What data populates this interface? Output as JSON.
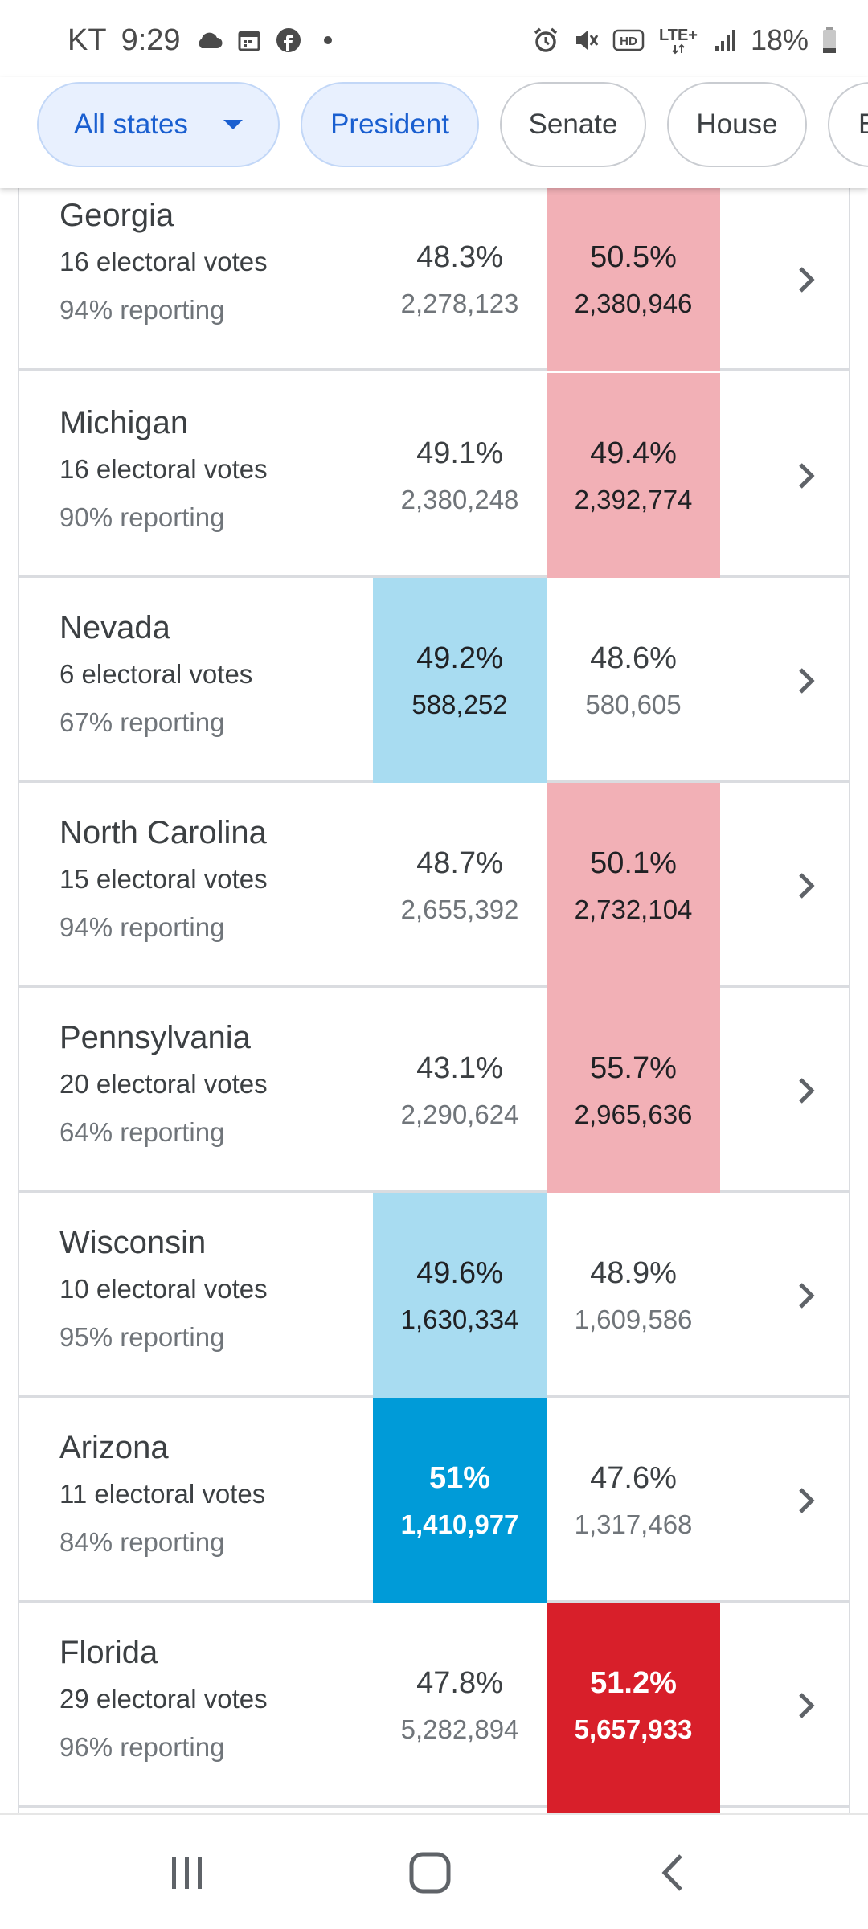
{
  "status_bar": {
    "carrier": "KT",
    "time": "9:29",
    "battery": "18%",
    "left_icons": [
      "cloud-icon",
      "calendar-icon",
      "facebook-icon",
      "notification-dot-icon"
    ],
    "right_icons": [
      "alarm-icon",
      "mute-icon",
      "hd-icon",
      "lte-icon",
      "signal-icon",
      "battery-icon"
    ],
    "hd_label": "HD",
    "lte_label": "LTE+"
  },
  "chips": {
    "all_states": "All states",
    "president": "President",
    "senate": "Senate",
    "house": "House",
    "partial": "B"
  },
  "colors": {
    "dem_light": "#a8dcf1",
    "rep_light": "#f2b0b6",
    "dem_win": "#009bd8",
    "rep_win": "#d81f2a",
    "chip_active_bg": "#e8f0fe",
    "chip_active_text": "#1a5fd0"
  },
  "states": [
    {
      "name": "Georgia",
      "ev": "16 electoral votes",
      "reporting": "94% reporting",
      "dem_pct": "48.3%",
      "dem_votes": "2,278,123",
      "rep_pct": "50.5%",
      "rep_votes": "2,380,946",
      "leader": "rep-lead"
    },
    {
      "name": "Michigan",
      "ev": "16 electoral votes",
      "reporting": "90% reporting",
      "dem_pct": "49.1%",
      "dem_votes": "2,380,248",
      "rep_pct": "49.4%",
      "rep_votes": "2,392,774",
      "leader": "rep-lead"
    },
    {
      "name": "Nevada",
      "ev": "6 electoral votes",
      "reporting": "67% reporting",
      "dem_pct": "49.2%",
      "dem_votes": "588,252",
      "rep_pct": "48.6%",
      "rep_votes": "580,605",
      "leader": "dem-lead"
    },
    {
      "name": "North Carolina",
      "ev": "15 electoral votes",
      "reporting": "94% reporting",
      "dem_pct": "48.7%",
      "dem_votes": "2,655,392",
      "rep_pct": "50.1%",
      "rep_votes": "2,732,104",
      "leader": "rep-lead"
    },
    {
      "name": "Pennsylvania",
      "ev": "20 electoral votes",
      "reporting": "64% reporting",
      "dem_pct": "43.1%",
      "dem_votes": "2,290,624",
      "rep_pct": "55.7%",
      "rep_votes": "2,965,636",
      "leader": "rep-lead"
    },
    {
      "name": "Wisconsin",
      "ev": "10 electoral votes",
      "reporting": "95% reporting",
      "dem_pct": "49.6%",
      "dem_votes": "1,630,334",
      "rep_pct": "48.9%",
      "rep_votes": "1,609,586",
      "leader": "dem-lead"
    },
    {
      "name": "Arizona",
      "ev": "11 electoral votes",
      "reporting": "84% reporting",
      "dem_pct": "51%",
      "dem_votes": "1,410,977",
      "rep_pct": "47.6%",
      "rep_votes": "1,317,468",
      "leader": "dem-win"
    },
    {
      "name": "Florida",
      "ev": "29 electoral votes",
      "reporting": "96% reporting",
      "dem_pct": "47.8%",
      "dem_votes": "5,282,894",
      "rep_pct": "51.2%",
      "rep_votes": "5,657,933",
      "leader": "rep-win"
    }
  ],
  "nav": {
    "recents_icon": "recents-icon",
    "home_icon": "home-icon",
    "back_icon": "back-icon"
  }
}
